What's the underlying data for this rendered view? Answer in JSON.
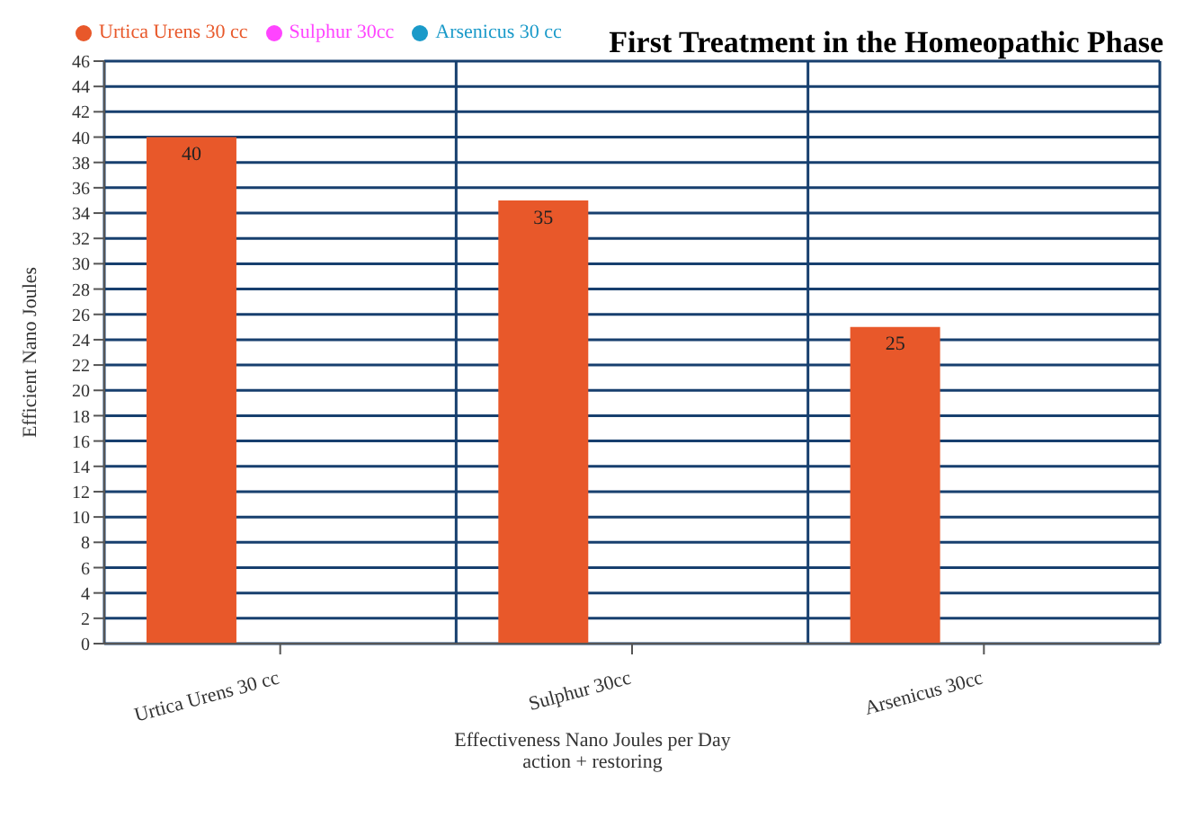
{
  "chart_data": {
    "type": "bar",
    "title": "First Treatment in the Homeopathic Phase",
    "xlabel": "Effectiveness Nano Joules per Day\naction + restoring",
    "ylabel": "Efficient Nano Joules",
    "categories": [
      "Urtica Urens 30 cc",
      "Sulphur 30cc",
      "Arsenicus 30cc"
    ],
    "series": [
      {
        "name": "Urtica Urens 30 cc",
        "color": "#e8582a",
        "values": [
          40,
          35,
          25
        ]
      },
      {
        "name": "Sulphur 30cc",
        "color": "#ff44ff",
        "values": [
          null,
          null,
          null
        ]
      },
      {
        "name": "Arsenicus 30 cc",
        "color": "#1a9ac9",
        "values": [
          null,
          null,
          null
        ]
      }
    ],
    "ylim": [
      0,
      46
    ],
    "yticks": [
      0,
      2,
      4,
      6,
      8,
      10,
      12,
      14,
      16,
      18,
      20,
      22,
      24,
      26,
      28,
      30,
      32,
      34,
      36,
      38,
      40,
      42,
      44,
      46
    ],
    "grid": true,
    "legend": "top left",
    "data_labels": true
  }
}
